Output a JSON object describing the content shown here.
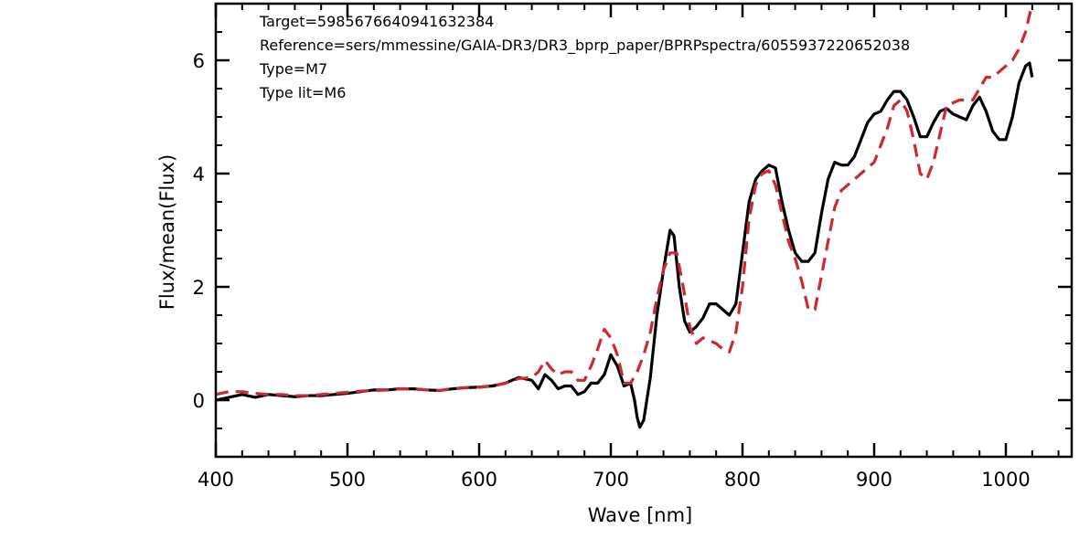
{
  "chart_data": {
    "type": "line",
    "xlabel": "Wave [nm]",
    "ylabel": "Flux/mean(Flux)",
    "xlim": [
      400,
      1050
    ],
    "ylim": [
      -1,
      7
    ],
    "x_ticks": [
      400,
      500,
      600,
      700,
      800,
      900,
      1000
    ],
    "y_ticks": [
      0,
      2,
      4,
      6
    ],
    "x_minor_step": 20,
    "y_minor_step": 0.5,
    "grid": false,
    "annotations": [
      "Target=5985676640941632384",
      "Reference=sers/mmessine/GAIA-DR3/DR3_bprp_paper/BPRPspectra/6055937220652038",
      "Type=M7",
      "Type lit=M6"
    ],
    "series": [
      {
        "color": "#000000",
        "dash": "solid",
        "x": [
          400,
          410,
          420,
          430,
          440,
          450,
          460,
          470,
          480,
          490,
          500,
          510,
          520,
          530,
          540,
          550,
          560,
          570,
          580,
          590,
          600,
          610,
          620,
          630,
          640,
          645,
          650,
          655,
          660,
          665,
          670,
          675,
          680,
          685,
          690,
          695,
          700,
          705,
          710,
          715,
          718,
          720,
          722,
          725,
          730,
          735,
          740,
          745,
          748,
          752,
          756,
          760,
          765,
          770,
          775,
          780,
          785,
          790,
          795,
          800,
          805,
          810,
          815,
          820,
          825,
          830,
          835,
          840,
          845,
          850,
          855,
          860,
          865,
          870,
          875,
          880,
          885,
          890,
          895,
          900,
          905,
          910,
          915,
          920,
          925,
          930,
          935,
          940,
          945,
          950,
          955,
          960,
          965,
          970,
          975,
          980,
          985,
          990,
          995,
          1000,
          1005,
          1010,
          1015,
          1018,
          1020
        ],
        "y": [
          0.0,
          0.05,
          0.1,
          0.05,
          0.1,
          0.08,
          0.06,
          0.08,
          0.08,
          0.1,
          0.12,
          0.15,
          0.18,
          0.18,
          0.2,
          0.2,
          0.18,
          0.17,
          0.2,
          0.22,
          0.23,
          0.25,
          0.3,
          0.4,
          0.35,
          0.2,
          0.45,
          0.35,
          0.2,
          0.25,
          0.25,
          0.1,
          0.15,
          0.3,
          0.3,
          0.45,
          0.8,
          0.6,
          0.25,
          0.3,
          0.0,
          -0.3,
          -0.48,
          -0.35,
          0.4,
          1.5,
          2.3,
          3.0,
          2.9,
          2.0,
          1.4,
          1.2,
          1.3,
          1.45,
          1.7,
          1.7,
          1.6,
          1.5,
          1.7,
          2.6,
          3.5,
          3.9,
          4.05,
          4.15,
          4.1,
          3.5,
          3.0,
          2.6,
          2.45,
          2.45,
          2.6,
          3.3,
          3.9,
          4.2,
          4.15,
          4.15,
          4.3,
          4.6,
          4.9,
          5.05,
          5.1,
          5.3,
          5.45,
          5.45,
          5.3,
          5.0,
          4.65,
          4.65,
          4.9,
          5.1,
          5.15,
          5.05,
          5.0,
          4.95,
          5.2,
          5.35,
          5.1,
          4.75,
          4.6,
          4.6,
          5.0,
          5.6,
          5.9,
          5.95,
          5.7
        ]
      },
      {
        "color": "#cc2a33",
        "dash": "dashed",
        "x": [
          400,
          410,
          420,
          430,
          440,
          450,
          460,
          470,
          480,
          490,
          500,
          510,
          520,
          530,
          540,
          550,
          560,
          570,
          580,
          590,
          600,
          610,
          620,
          630,
          640,
          645,
          650,
          655,
          660,
          665,
          670,
          675,
          680,
          685,
          690,
          695,
          700,
          705,
          710,
          715,
          720,
          725,
          730,
          735,
          740,
          745,
          750,
          755,
          760,
          765,
          770,
          775,
          780,
          785,
          790,
          795,
          800,
          805,
          810,
          815,
          820,
          825,
          830,
          835,
          840,
          845,
          850,
          855,
          860,
          865,
          870,
          875,
          880,
          885,
          890,
          895,
          900,
          905,
          910,
          915,
          920,
          925,
          930,
          935,
          940,
          945,
          950,
          955,
          960,
          965,
          970,
          975,
          980,
          985,
          990,
          995,
          1000,
          1005,
          1010,
          1015,
          1020
        ],
        "y": [
          0.1,
          0.15,
          0.15,
          0.12,
          0.1,
          0.1,
          0.08,
          0.08,
          0.1,
          0.12,
          0.14,
          0.16,
          0.17,
          0.18,
          0.2,
          0.2,
          0.18,
          0.17,
          0.2,
          0.22,
          0.23,
          0.25,
          0.3,
          0.38,
          0.4,
          0.5,
          0.7,
          0.55,
          0.45,
          0.5,
          0.5,
          0.35,
          0.35,
          0.6,
          0.9,
          1.25,
          1.1,
          0.8,
          0.3,
          0.3,
          0.5,
          0.8,
          1.2,
          1.8,
          2.3,
          2.6,
          2.6,
          2.0,
          1.3,
          1.0,
          1.1,
          1.05,
          1.0,
          0.9,
          0.85,
          1.2,
          2.0,
          3.2,
          3.8,
          4.0,
          4.05,
          3.8,
          3.3,
          2.8,
          2.5,
          2.1,
          1.6,
          1.6,
          2.2,
          2.8,
          3.4,
          3.7,
          3.8,
          3.9,
          4.0,
          4.1,
          4.2,
          4.5,
          4.8,
          5.2,
          5.3,
          5.1,
          4.6,
          4.0,
          3.9,
          4.2,
          4.7,
          5.2,
          5.25,
          5.3,
          5.3,
          5.3,
          5.5,
          5.7,
          5.7,
          5.8,
          5.9,
          6.0,
          6.2,
          6.5,
          7.0
        ]
      }
    ]
  }
}
